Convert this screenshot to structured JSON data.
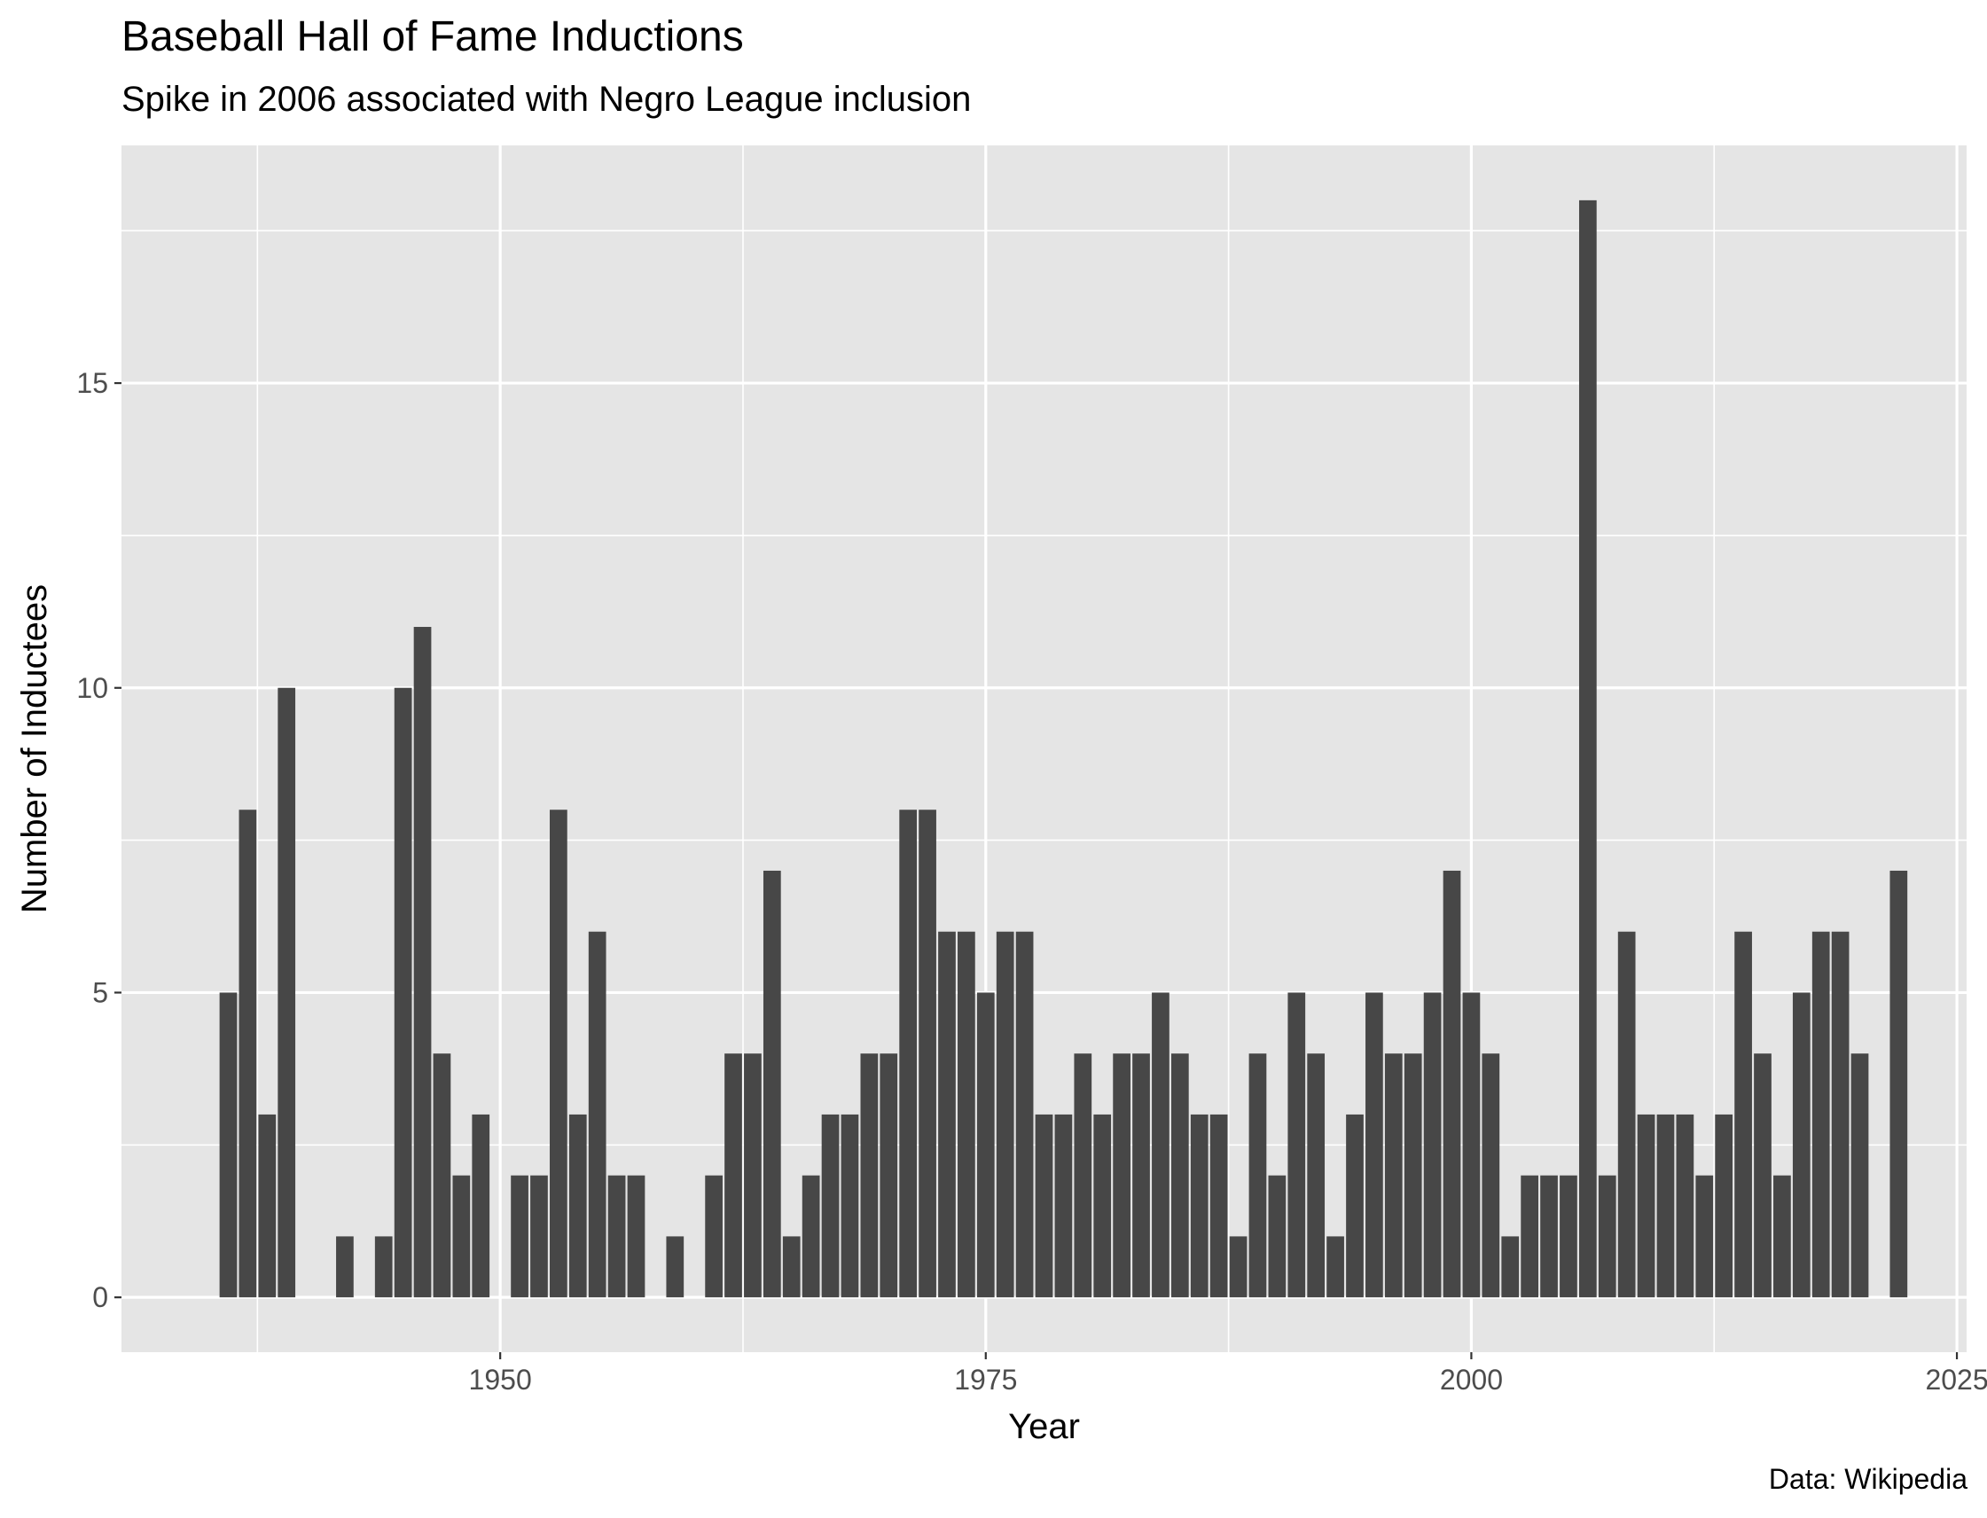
{
  "chart_data": {
    "type": "bar",
    "title": "Baseball Hall of Fame Inductions",
    "subtitle": "Spike in 2006 associated with Negro League inclusion",
    "caption": "Data: Wikipedia",
    "xlabel": "Year",
    "ylabel": "Number of Inductees",
    "xlim": [
      1930.5,
      2025.5
    ],
    "ylim": [
      -0.9,
      18.9
    ],
    "xticks": [
      1950,
      1975,
      2000,
      2025
    ],
    "yticks": [
      0,
      5,
      10,
      15
    ],
    "grid": true,
    "legend": "none",
    "colors": {
      "panel": "#e5e5e5",
      "grid": "#ffffff",
      "bar": "#474747",
      "axis_text": "#4d4d4d",
      "tick": "#333333"
    },
    "series": [
      {
        "x": [
          1936,
          1937,
          1938,
          1939,
          1942,
          1944,
          1945,
          1946,
          1947,
          1948,
          1949,
          1951,
          1952,
          1953,
          1954,
          1955,
          1956,
          1957,
          1959,
          1961,
          1962,
          1963,
          1964,
          1965,
          1966,
          1967,
          1968,
          1969,
          1970,
          1971,
          1972,
          1973,
          1974,
          1975,
          1976,
          1977,
          1978,
          1979,
          1980,
          1981,
          1982,
          1983,
          1984,
          1985,
          1986,
          1987,
          1988,
          1989,
          1990,
          1991,
          1992,
          1993,
          1994,
          1995,
          1996,
          1997,
          1998,
          1999,
          2000,
          2001,
          2002,
          2003,
          2004,
          2005,
          2006,
          2007,
          2008,
          2009,
          2010,
          2011,
          2012,
          2013,
          2014,
          2015,
          2016,
          2017,
          2018,
          2019,
          2020,
          2022
        ],
        "values": [
          5,
          8,
          3,
          10,
          1,
          1,
          10,
          11,
          4,
          2,
          3,
          2,
          2,
          8,
          3,
          6,
          2,
          2,
          1,
          2,
          4,
          4,
          7,
          1,
          2,
          3,
          3,
          4,
          4,
          8,
          8,
          6,
          6,
          5,
          6,
          6,
          3,
          3,
          4,
          3,
          4,
          4,
          5,
          4,
          3,
          3,
          1,
          4,
          2,
          5,
          4,
          1,
          3,
          5,
          4,
          4,
          5,
          7,
          5,
          4,
          1,
          2,
          2,
          2,
          18,
          2,
          6,
          3,
          3,
          3,
          2,
          3,
          6,
          4,
          2,
          5,
          6,
          6,
          4,
          7
        ]
      }
    ]
  }
}
